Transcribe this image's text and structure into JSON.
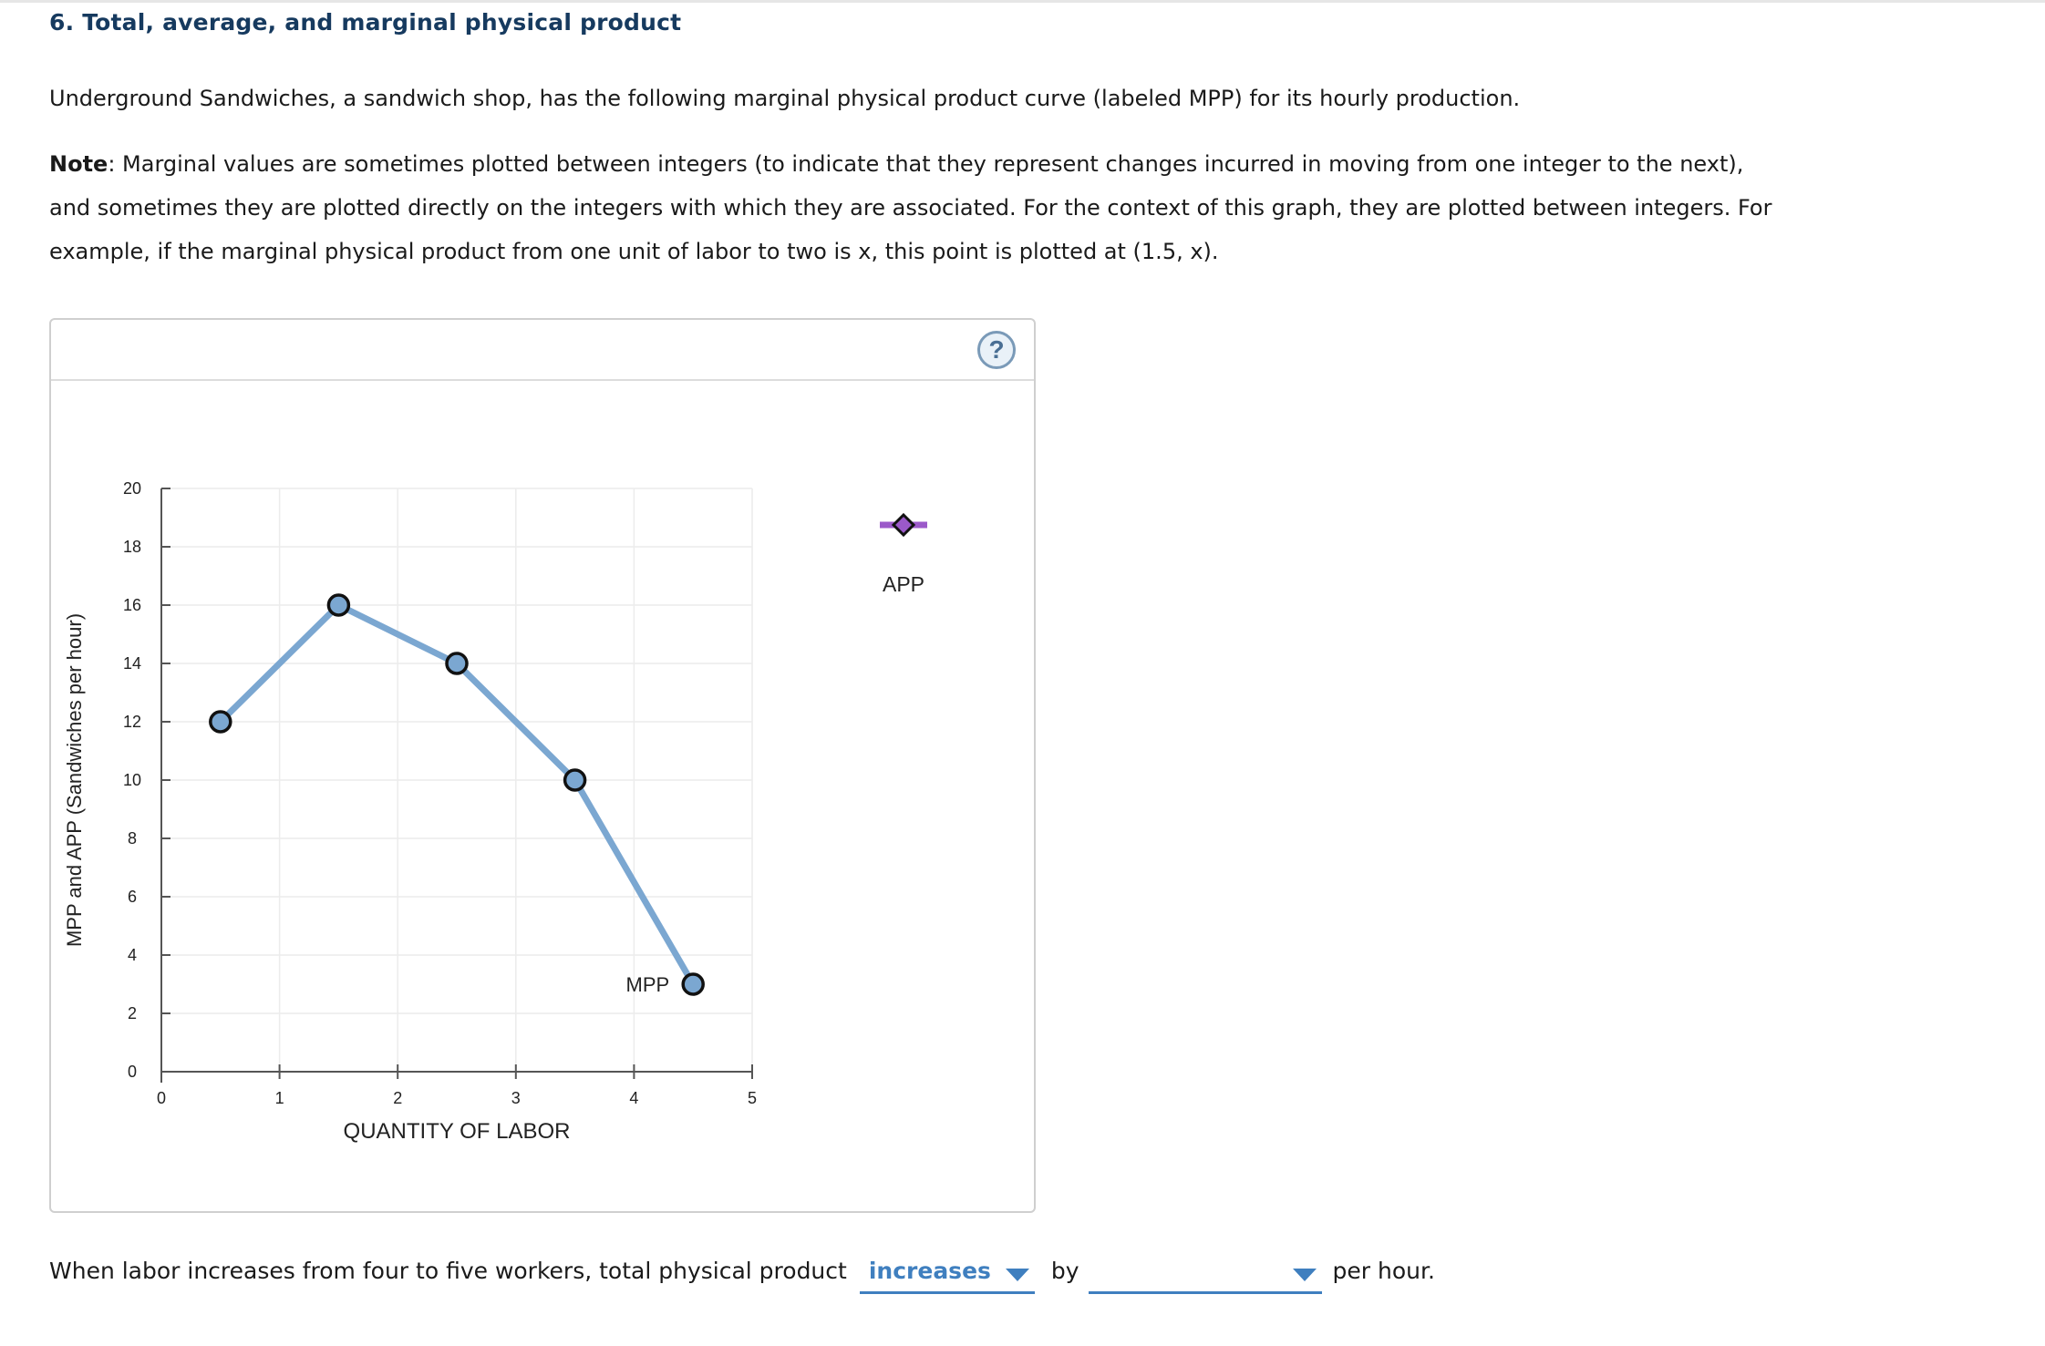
{
  "question": {
    "title": "6. Total, average, and marginal physical product",
    "intro": "Underground Sandwiches, a sandwich shop, has the following marginal physical product curve (labeled MPP) for its hourly production.",
    "note_label": "Note",
    "note_text": ": Marginal values are sometimes plotted between integers (to indicate that they represent changes incurred in moving from one integer to the next), and sometimes they are plotted directly on the integers with which they are associated. For the context of this graph, they are plotted between integers. For example, if the marginal physical product from one unit of labor to two is x, this point is plotted at (1.5, x)."
  },
  "panel": {
    "help_label": "?"
  },
  "chart_data": {
    "type": "line",
    "xlabel": "QUANTITY OF LABOR",
    "ylabel": "MPP and APP (Sandwiches per hour)",
    "xlim": [
      0,
      5
    ],
    "ylim": [
      0,
      20
    ],
    "x_ticks": [
      0,
      1,
      2,
      3,
      4,
      5
    ],
    "y_ticks": [
      0,
      2,
      4,
      6,
      8,
      10,
      12,
      14,
      16,
      18,
      20
    ],
    "grid": true,
    "series": [
      {
        "name": "MPP",
        "color": "#7ba7d1",
        "marker": "circle",
        "x": [
          0.5,
          1.5,
          2.5,
          3.5,
          4.5
        ],
        "y": [
          12,
          16,
          14,
          10,
          3
        ]
      }
    ],
    "palette_tool": {
      "name": "APP",
      "color": "#9b59c9",
      "marker": "diamond"
    }
  },
  "bottom": {
    "sentence_start": "When labor increases from four to five workers, total physical product",
    "dropdown1_value": "increases",
    "by_word": "by",
    "dropdown2_value": "",
    "sentence_end": "per hour."
  }
}
